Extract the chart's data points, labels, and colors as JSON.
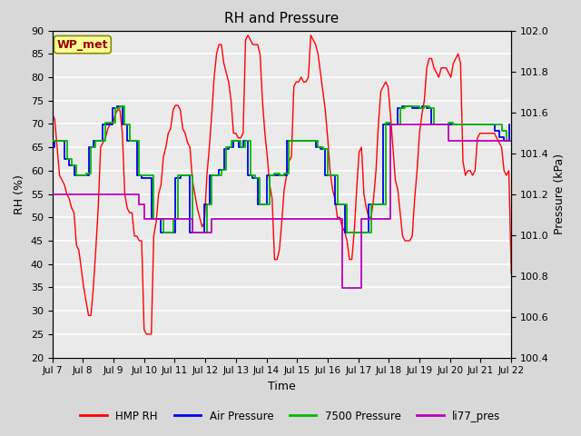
{
  "title": "RH and Pressure",
  "xlabel": "Time",
  "ylabel_left": "RH (%)",
  "ylabel_right": "Pressure (kPa)",
  "annotation": "WP_met",
  "ylim_left": [
    20,
    90
  ],
  "ylim_right": [
    100.4,
    102.0
  ],
  "yticks_left": [
    20,
    25,
    30,
    35,
    40,
    45,
    50,
    55,
    60,
    65,
    70,
    75,
    80,
    85,
    90
  ],
  "yticks_right": [
    100.4,
    100.6,
    100.8,
    101.0,
    101.2,
    101.4,
    101.6,
    101.8,
    102.0
  ],
  "xtick_labels": [
    "Jul 7",
    "Jul 8",
    "Jul 9",
    "Jul 10",
    "Jul 11",
    "Jul 12",
    "Jul 13",
    "Jul 14",
    "Jul 15",
    "Jul 16",
    "Jul 17",
    "Jul 18",
    "Jul 19",
    "Jul 20",
    "Jul 21",
    "Jul 22"
  ],
  "bg_color": "#d8d8d8",
  "plot_bg_color": "#eaeaea",
  "grid_color": "#ffffff",
  "hmp_rh": [
    72,
    71,
    65,
    59,
    58,
    57,
    55,
    54,
    52,
    51,
    44,
    43,
    39,
    35,
    32,
    29,
    29,
    35,
    43,
    52,
    65,
    66,
    67,
    69,
    70,
    70,
    72,
    73,
    73,
    68,
    55,
    52,
    51,
    51,
    46,
    46,
    45,
    45,
    26,
    25,
    25,
    25,
    46,
    49,
    55,
    57,
    63,
    65,
    68,
    69,
    73,
    74,
    74,
    73,
    69,
    68,
    66,
    65,
    58,
    55,
    52,
    50,
    48,
    49,
    59,
    65,
    72,
    80,
    85,
    87,
    87,
    83,
    81,
    79,
    75,
    68,
    68,
    67,
    67,
    68,
    88,
    89,
    88,
    87,
    87,
    87,
    85,
    75,
    68,
    63,
    57,
    54,
    41,
    41,
    43,
    49,
    56,
    59,
    62,
    63,
    78,
    79,
    79,
    80,
    79,
    79,
    80,
    89,
    88,
    87,
    85,
    81,
    77,
    73,
    67,
    60,
    56,
    54,
    50,
    50,
    48,
    47,
    45,
    41,
    41,
    47,
    56,
    64,
    65,
    55,
    52,
    50,
    50,
    54,
    60,
    70,
    77,
    78,
    79,
    78,
    72,
    65,
    58,
    56,
    51,
    46,
    45,
    45,
    45,
    46,
    54,
    60,
    68,
    72,
    75,
    82,
    84,
    84,
    82,
    81,
    80,
    82,
    82,
    82,
    81,
    80,
    83,
    84,
    85,
    83,
    62,
    59,
    60,
    60,
    59,
    60,
    67,
    68,
    68,
    68,
    68,
    68,
    68,
    68,
    67,
    66,
    65,
    60,
    59,
    60,
    38
  ],
  "air_pressure_kpa": [
    101.43,
    101.46,
    101.46,
    101.37,
    101.34,
    101.29,
    101.29,
    101.29,
    101.43,
    101.46,
    101.46,
    101.54,
    101.54,
    101.62,
    101.63,
    101.54,
    101.46,
    101.46,
    101.29,
    101.28,
    101.28,
    101.08,
    101.08,
    101.01,
    101.01,
    101.01,
    101.28,
    101.29,
    101.29,
    101.01,
    101.01,
    101.01,
    101.15,
    101.29,
    101.29,
    101.32,
    101.42,
    101.43,
    101.46,
    101.43,
    101.46,
    101.29,
    101.28,
    101.15,
    101.15,
    101.29,
    101.29,
    101.29,
    101.29,
    101.46,
    101.46,
    101.46,
    101.46,
    101.46,
    101.46,
    101.43,
    101.42,
    101.29,
    101.29,
    101.15,
    101.15,
    101.01,
    101.01,
    101.01,
    101.01,
    101.01,
    101.15,
    101.15,
    101.15,
    101.54,
    101.54,
    101.54,
    101.62,
    101.63,
    101.63,
    101.62,
    101.62,
    101.63,
    101.62,
    101.54,
    101.54,
    101.54,
    101.54,
    101.54,
    101.54,
    101.54,
    101.54,
    101.54,
    101.54,
    101.54,
    101.54,
    101.54,
    101.51,
    101.48,
    101.46,
    101.54
  ],
  "air_pressure_t": [
    0,
    1,
    3,
    5,
    7,
    9,
    11,
    13,
    15,
    17,
    19,
    21,
    23,
    25,
    27,
    29,
    31,
    33,
    35,
    37,
    39,
    41,
    43,
    45,
    47,
    49,
    51,
    53,
    55,
    57,
    59,
    61,
    63,
    65,
    67,
    69,
    71,
    73,
    75,
    77,
    79,
    81,
    83,
    85,
    87,
    89,
    91,
    93,
    95,
    97,
    99,
    101,
    103,
    105,
    107,
    109,
    111,
    113,
    115,
    117,
    119,
    121,
    123,
    125,
    127,
    129,
    131,
    133,
    135,
    137,
    139,
    141,
    143,
    145,
    147,
    149,
    151,
    153,
    155,
    157,
    159,
    161,
    163,
    165,
    167,
    169,
    171,
    173,
    175,
    177,
    179,
    181,
    183,
    185,
    187,
    189
  ],
  "p7500_kpa": [
    101.46,
    101.46,
    101.46,
    101.37,
    101.34,
    101.29,
    101.29,
    101.3,
    101.43,
    101.46,
    101.46,
    101.55,
    101.55,
    101.62,
    101.63,
    101.54,
    101.46,
    101.46,
    101.29,
    101.29,
    101.29,
    101.08,
    101.08,
    101.01,
    101.01,
    101.08,
    101.29,
    101.29,
    101.29,
    101.01,
    101.01,
    101.01,
    101.15,
    101.29,
    101.29,
    101.32,
    101.43,
    101.46,
    101.46,
    101.43,
    101.46,
    101.29,
    101.28,
    101.15,
    101.15,
    101.29,
    101.3,
    101.29,
    101.3,
    101.46,
    101.46,
    101.46,
    101.46,
    101.46,
    101.46,
    101.43,
    101.42,
    101.29,
    101.29,
    101.15,
    101.15,
    101.01,
    101.01,
    101.01,
    101.01,
    101.01,
    101.15,
    101.15,
    101.15,
    101.55,
    101.54,
    101.54,
    101.62,
    101.63,
    101.63,
    101.63,
    101.62,
    101.63,
    101.62,
    101.54,
    101.54,
    101.54,
    101.55,
    101.54,
    101.54,
    101.54,
    101.54,
    101.54,
    101.54,
    101.54,
    101.54,
    101.54,
    101.54,
    101.51,
    101.46,
    101.46
  ],
  "p7500_t": [
    0,
    2,
    4,
    6,
    8,
    10,
    12,
    14,
    16,
    18,
    20,
    22,
    24,
    26,
    28,
    30,
    32,
    34,
    36,
    38,
    40,
    42,
    44,
    46,
    48,
    50,
    52,
    54,
    56,
    58,
    60,
    62,
    64,
    66,
    68,
    70,
    72,
    74,
    76,
    78,
    80,
    82,
    84,
    86,
    88,
    90,
    92,
    94,
    96,
    98,
    100,
    102,
    104,
    106,
    108,
    110,
    112,
    114,
    116,
    118,
    120,
    122,
    124,
    126,
    128,
    130,
    132,
    134,
    136,
    138,
    140,
    142,
    144,
    146,
    148,
    150,
    152,
    154,
    156,
    158,
    160,
    162,
    164,
    166,
    168,
    170,
    172,
    174,
    176,
    178,
    180,
    182,
    184,
    186,
    188,
    190
  ],
  "li77_kpa": [
    101.2,
    101.2,
    101.2,
    101.2,
    101.2,
    101.2,
    101.2,
    101.2,
    101.2,
    101.2,
    101.2,
    101.2,
    101.2,
    101.2,
    101.2,
    101.2,
    101.2,
    101.2,
    101.15,
    101.08,
    101.08,
    101.08,
    101.08,
    101.08,
    101.08,
    101.08,
    101.08,
    101.08,
    101.08,
    101.01,
    101.01,
    101.01,
    101.01,
    101.08,
    101.08,
    101.08,
    101.08,
    101.08,
    101.08,
    101.08,
    101.08,
    101.08,
    101.08,
    101.08,
    101.08,
    101.08,
    101.08,
    101.08,
    101.08,
    101.08,
    101.08,
    101.08,
    101.08,
    101.08,
    101.08,
    101.08,
    101.08,
    101.08,
    101.08,
    101.08,
    100.74,
    100.74,
    100.74,
    100.74,
    101.08,
    101.08,
    101.08,
    101.08,
    101.08,
    101.08,
    101.54,
    101.54,
    101.54,
    101.54,
    101.54,
    101.54,
    101.54,
    101.54,
    101.54,
    101.54,
    101.54,
    101.54,
    101.46,
    101.46,
    101.46,
    101.46,
    101.46,
    101.46,
    101.46,
    101.46,
    101.46,
    101.46,
    101.46,
    101.46,
    101.46,
    101.46
  ],
  "li77_t": [
    0,
    2,
    4,
    6,
    8,
    10,
    12,
    14,
    16,
    18,
    20,
    22,
    24,
    26,
    28,
    30,
    32,
    34,
    36,
    38,
    40,
    42,
    44,
    46,
    48,
    50,
    52,
    54,
    56,
    58,
    60,
    62,
    64,
    66,
    68,
    70,
    72,
    74,
    76,
    78,
    80,
    82,
    84,
    86,
    88,
    90,
    92,
    94,
    96,
    98,
    100,
    102,
    104,
    106,
    108,
    110,
    112,
    114,
    116,
    118,
    120,
    122,
    124,
    126,
    128,
    130,
    132,
    134,
    136,
    138,
    140,
    142,
    144,
    146,
    148,
    150,
    152,
    154,
    156,
    158,
    160,
    162,
    164,
    166,
    168,
    170,
    172,
    174,
    176,
    178,
    180,
    182,
    184,
    186,
    188,
    190
  ]
}
